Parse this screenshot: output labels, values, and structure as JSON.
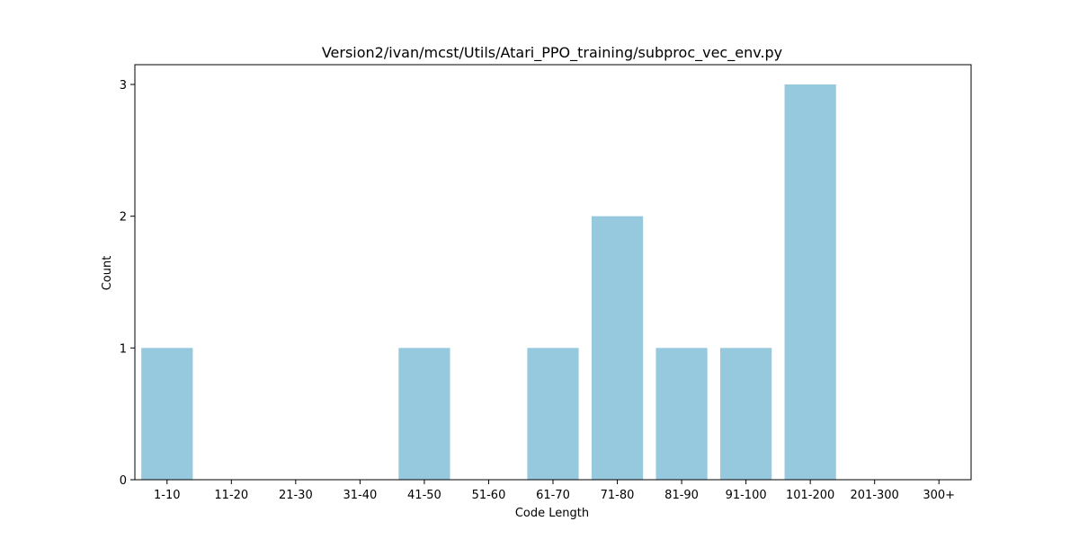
{
  "chart_data": {
    "type": "bar",
    "title": "Version2/ivan/mcst/Utils/Atari_PPO_training/subproc_vec_env.py",
    "xlabel": "Code Length",
    "ylabel": "Count",
    "categories": [
      "1-10",
      "11-20",
      "21-30",
      "31-40",
      "41-50",
      "51-60",
      "61-70",
      "71-80",
      "81-90",
      "91-100",
      "101-200",
      "201-300",
      "300+"
    ],
    "values": [
      1,
      0,
      0,
      0,
      1,
      0,
      1,
      2,
      1,
      1,
      3,
      0,
      0
    ],
    "yticks": [
      0,
      1,
      2,
      3
    ],
    "ylim": [
      0,
      3.15
    ],
    "bar_color": "#96c9de",
    "grid": false,
    "legend": "none"
  }
}
